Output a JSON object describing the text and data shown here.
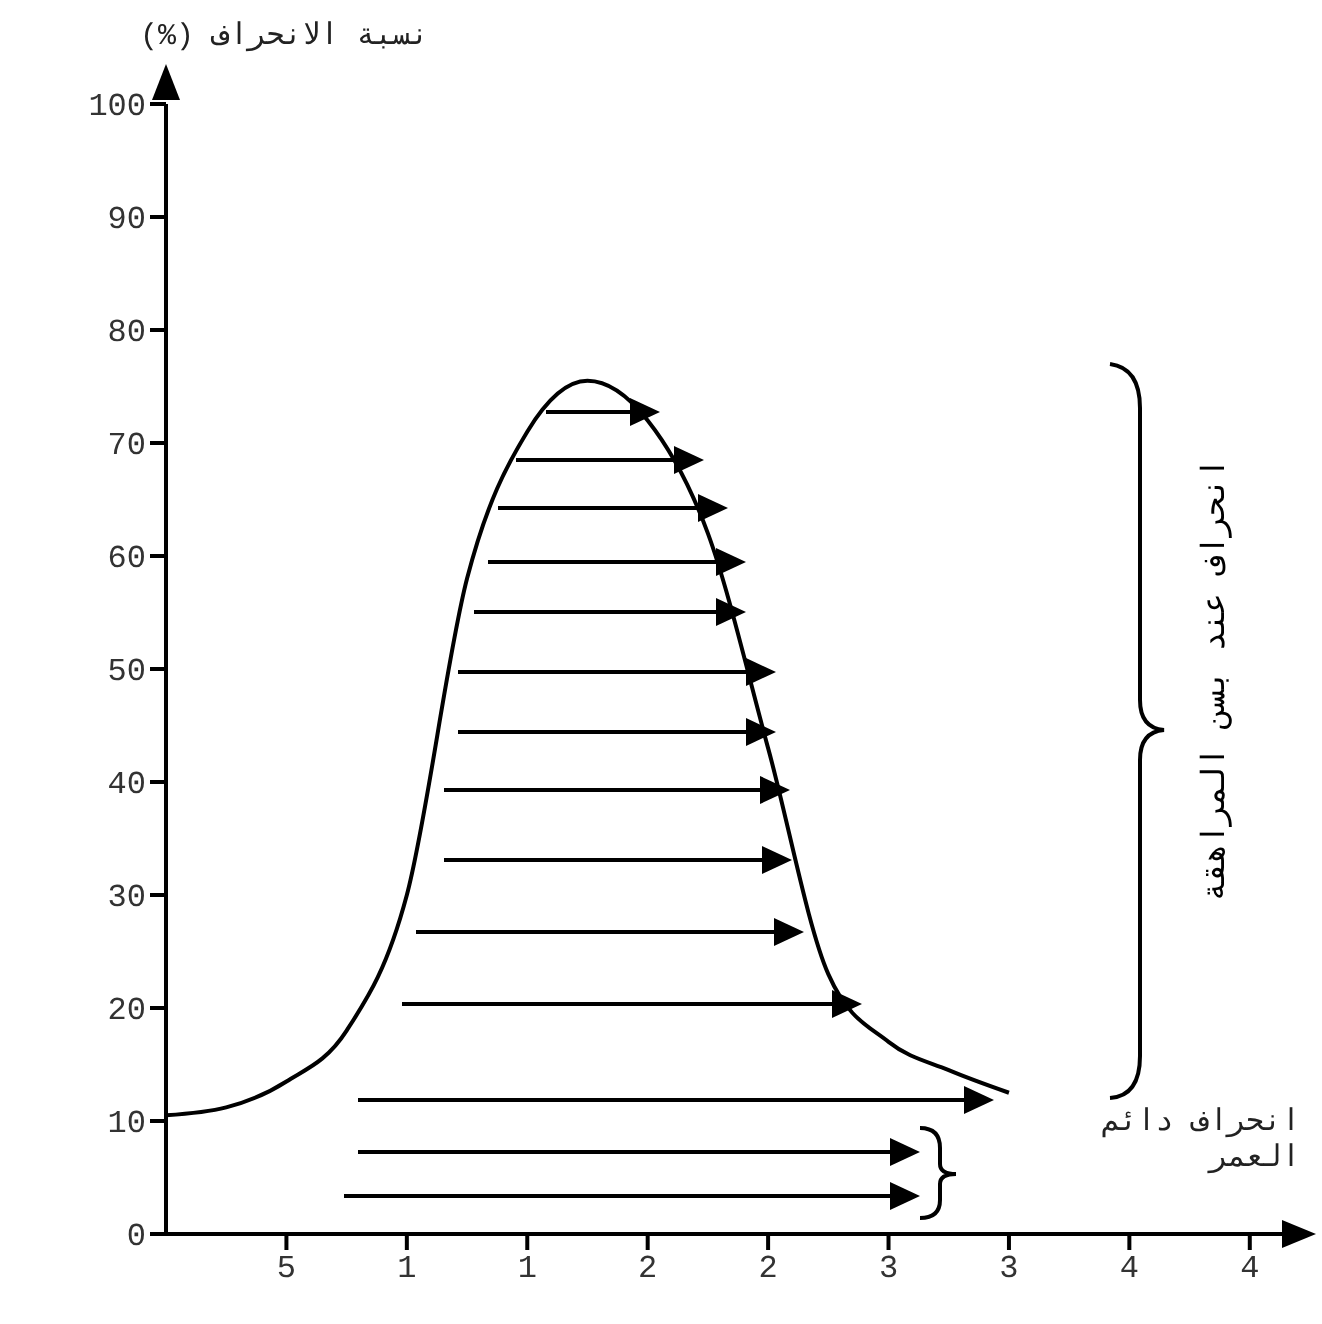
{
  "chart_data": {
    "type": "line",
    "ylabel": "نسبة الانحراف (%)",
    "annotations": [
      "انحراف عند بسن المراهقة",
      "انحراف دائم العمر"
    ],
    "categories": [
      null,
      null,
      "5",
      null,
      "1",
      null,
      "1",
      null,
      "2",
      null,
      "2",
      null,
      "3",
      null,
      "3",
      null,
      "4",
      null,
      "4",
      null
    ],
    "series": [
      {
        "color": "#000000",
        "values": [
          10.5,
          11.2,
          13.5,
          18,
          30,
          58,
          71,
          75.5,
          72,
          62,
          43,
          23,
          17,
          14.5,
          12.5,
          null,
          null,
          null,
          null,
          null
        ]
      }
    ],
    "ylim": [
      0,
      100
    ],
    "yticks": [
      0,
      10,
      20,
      30,
      40,
      50,
      60,
      70,
      80,
      90,
      100
    ]
  }
}
